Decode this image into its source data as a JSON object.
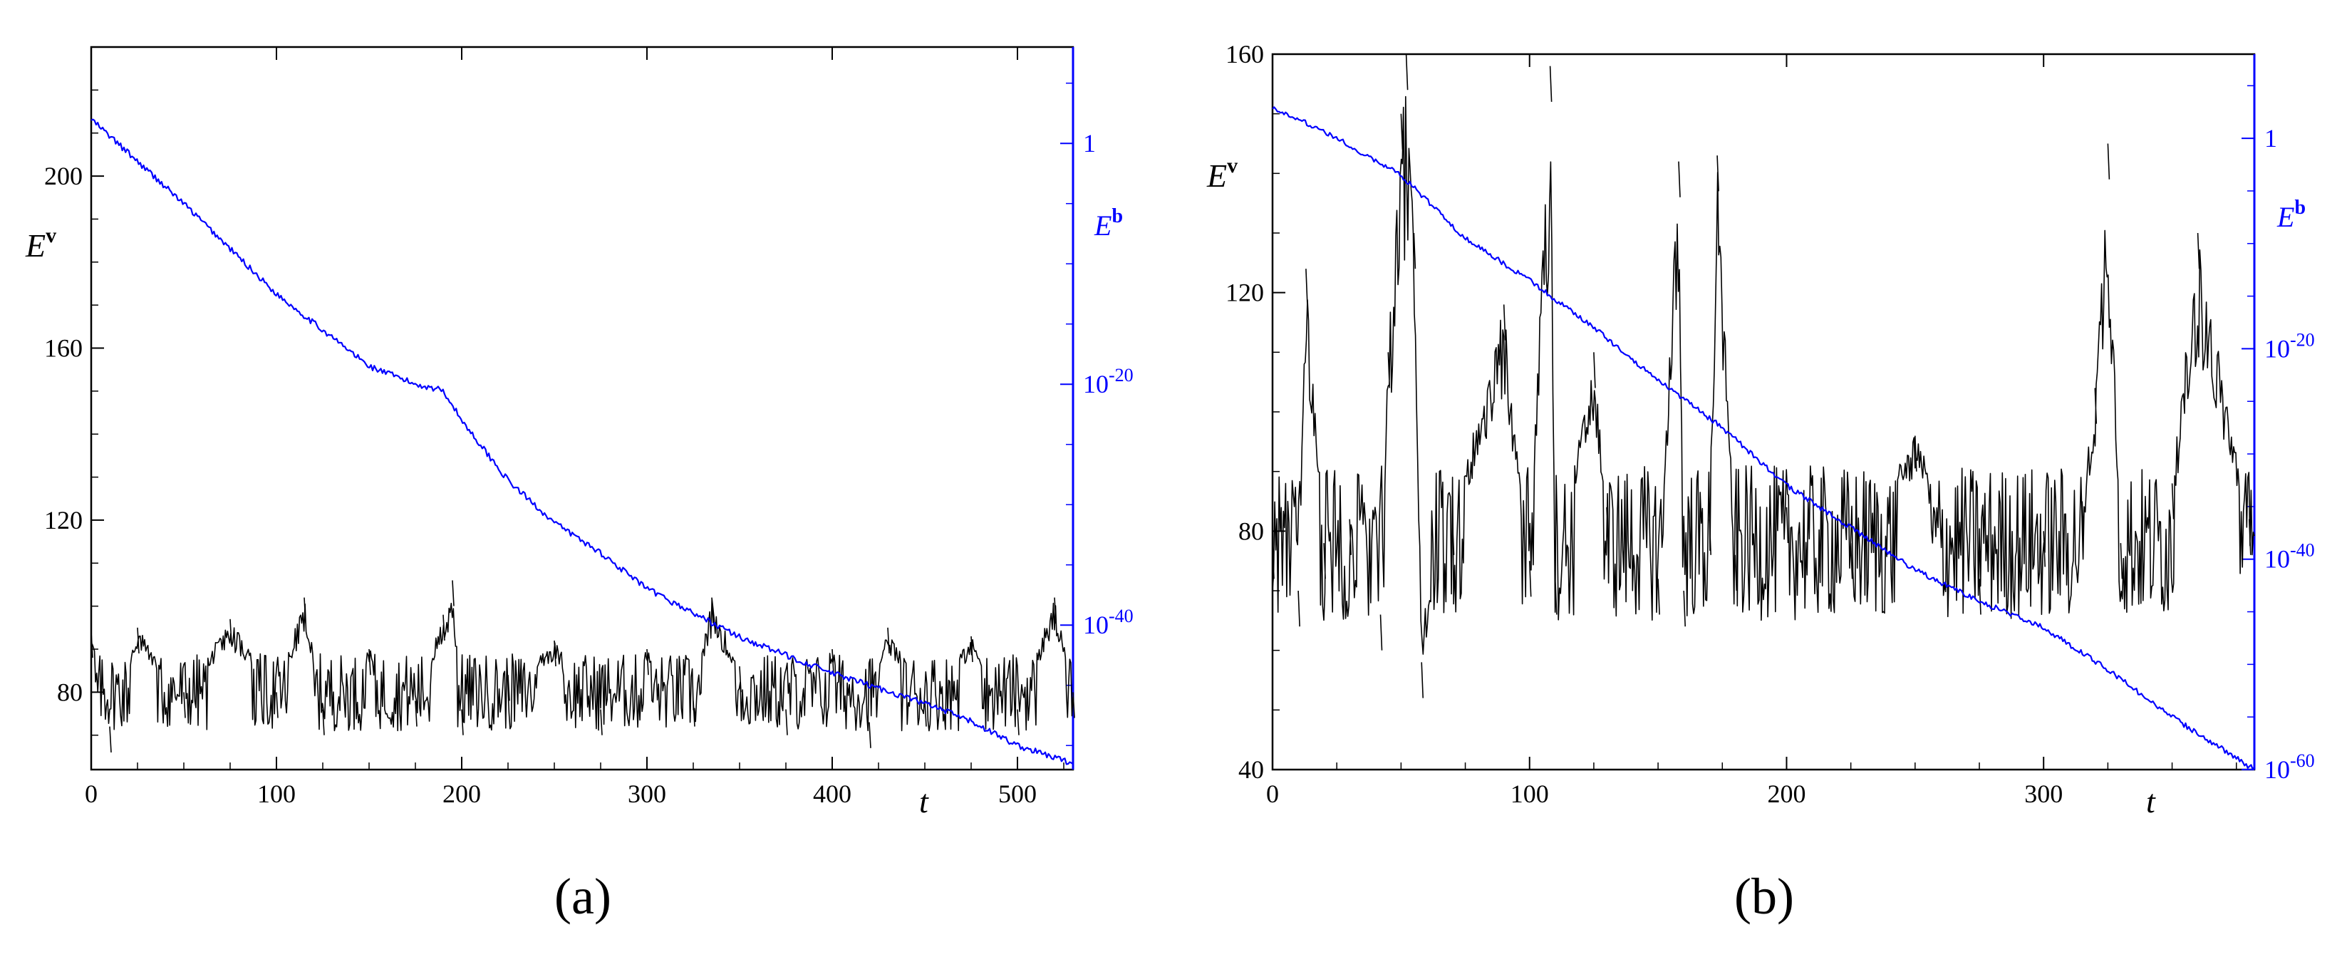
{
  "chart_data": [
    {
      "type": "line",
      "panel_label": "(a)",
      "xlabel": "t",
      "ylabel_left": {
        "base": "E",
        "sup": "v"
      },
      "ylabel_right": {
        "base": "E",
        "sup": "b"
      },
      "xlim": [
        0,
        530
      ],
      "ylim_left": [
        62,
        230
      ],
      "ylim_right_log10": [
        -52,
        8
      ],
      "x_ticks": [
        0,
        100,
        200,
        300,
        400,
        500
      ],
      "y_ticks_left": [
        80,
        120,
        160,
        200
      ],
      "y_ticks_right": [
        {
          "value_log10": 0,
          "label": "1"
        },
        {
          "value_log10": -20,
          "label_base": "10",
          "label_exp": "-20"
        },
        {
          "value_log10": -40,
          "label_base": "10",
          "label_exp": "-40"
        }
      ],
      "grid": false,
      "series": [
        {
          "color": "#000000",
          "axis": "left",
          "x": [
            0,
            10,
            25,
            50,
            75,
            100,
            115,
            125,
            150,
            175,
            190,
            195,
            200,
            225,
            250,
            275,
            300,
            325,
            335,
            350,
            375,
            400,
            420,
            430,
            450,
            475,
            500,
            520,
            530
          ],
          "values": [
            94,
            72,
            95,
            80,
            97,
            80,
            102,
            76,
            90,
            78,
            98,
            106,
            76,
            84,
            92,
            76,
            90,
            78,
            102,
            86,
            76,
            90,
            73,
            95,
            78,
            93,
            76,
            102,
            80
          ]
        },
        {
          "color": "#0000ff",
          "axis": "right",
          "scale": "log10",
          "x": [
            0,
            25,
            50,
            100,
            150,
            175,
            190,
            200,
            225,
            250,
            275,
            300,
            350,
            400,
            430,
            450,
            475,
            500,
            530
          ],
          "values": [
            2.0,
            -1.5,
            -5.0,
            -12.5,
            -18.5,
            -20.0,
            -20.5,
            -23.0,
            -28.0,
            -31.5,
            -34.0,
            -37.0,
            -41.0,
            -44.0,
            -45.5,
            -46.5,
            -48.0,
            -50.0,
            -51.5
          ]
        }
      ]
    },
    {
      "type": "line",
      "panel_label": "(b)",
      "xlabel": "t",
      "ylabel_left": {
        "base": "E",
        "sup": "v"
      },
      "ylabel_right": {
        "base": "E",
        "sup": "b"
      },
      "xlim": [
        0,
        382
      ],
      "ylim_left": [
        40,
        160
      ],
      "ylim_right_log10": [
        -60,
        8
      ],
      "x_ticks": [
        0,
        100,
        200,
        300
      ],
      "y_ticks_left": [
        40,
        80,
        120,
        160
      ],
      "y_ticks_right": [
        {
          "value_log10": 0,
          "label": "1"
        },
        {
          "value_log10": -20,
          "label_base": "10",
          "label_exp": "-20"
        },
        {
          "value_log10": -40,
          "label_base": "10",
          "label_exp": "-40"
        },
        {
          "value_log10": -60,
          "label_base": "10",
          "label_exp": "-60"
        }
      ],
      "grid": false,
      "series": [
        {
          "color": "#000000",
          "axis": "left",
          "x": [
            0,
            10,
            13,
            20,
            30,
            42,
            45,
            50,
            52,
            55,
            58,
            70,
            90,
            100,
            108,
            110,
            125,
            130,
            150,
            158,
            160,
            170,
            173,
            180,
            200,
            225,
            250,
            275,
            300,
            315,
            320,
            325,
            330,
            350,
            360,
            380
          ],
          "values": [
            78,
            70,
            124,
            78,
            82,
            66,
            110,
            150,
            160,
            130,
            58,
            82,
            118,
            75,
            158,
            72,
            110,
            84,
            72,
            142,
            70,
            82,
            143,
            76,
            84,
            78,
            96,
            72,
            80,
            85,
            104,
            145,
            78,
            88,
            130,
            82
          ]
        },
        {
          "color": "#0000ff",
          "axis": "right",
          "scale": "log10",
          "x": [
            0,
            25,
            50,
            75,
            100,
            125,
            150,
            175,
            200,
            225,
            250,
            275,
            300,
            325,
            350,
            382
          ],
          "values": [
            3.0,
            0.0,
            -3.5,
            -9.5,
            -13.5,
            -18.0,
            -23.0,
            -27.5,
            -33.0,
            -37.0,
            -41.0,
            -44.0,
            -46.5,
            -50.5,
            -55.0,
            -60.0
          ]
        }
      ]
    }
  ]
}
